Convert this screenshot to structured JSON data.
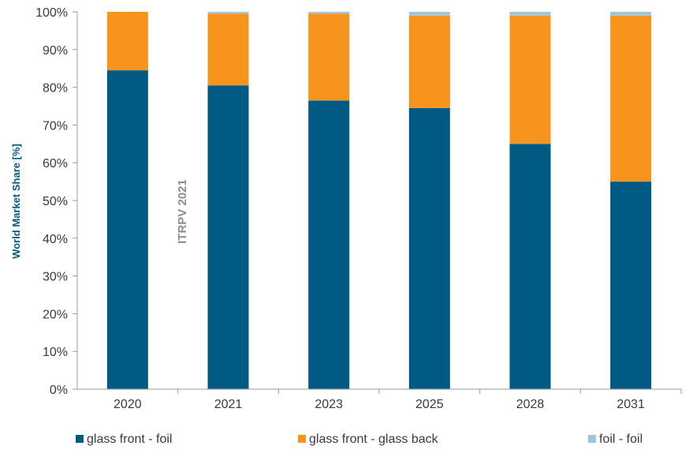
{
  "chart_data": {
    "type": "bar",
    "stacked": true,
    "title": "",
    "xlabel": "",
    "ylabel": "World Market Share [%]",
    "ylim": [
      0,
      100
    ],
    "y_ticks": [
      "0%",
      "10%",
      "20%",
      "30%",
      "40%",
      "50%",
      "60%",
      "70%",
      "80%",
      "90%",
      "100%"
    ],
    "categories": [
      "2020",
      "2021",
      "2023",
      "2025",
      "2028",
      "2031"
    ],
    "series": [
      {
        "name": "glass front - foil",
        "color": "#005a84",
        "values": [
          84.5,
          80.5,
          76.5,
          74.5,
          65,
          55
        ]
      },
      {
        "name": "glass front  - glass back",
        "color": "#f7941d",
        "values": [
          15.5,
          19,
          23,
          24.5,
          34,
          44
        ]
      },
      {
        "name": "foil - foil",
        "color": "#9fc5dc",
        "values": [
          0,
          0.5,
          0.5,
          1,
          1,
          1
        ]
      }
    ],
    "annotation": "ITRPV 2021",
    "grid": false,
    "legend_position": "bottom"
  }
}
